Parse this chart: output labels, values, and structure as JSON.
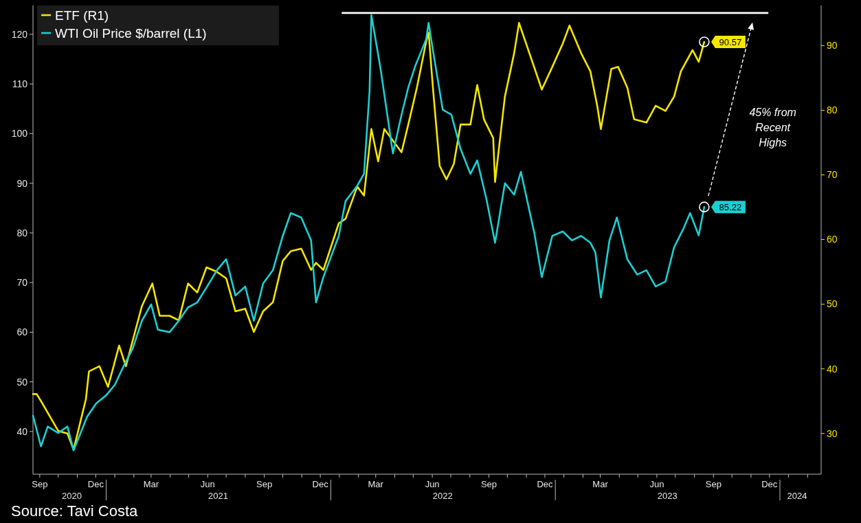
{
  "chart_data": {
    "type": "line",
    "legend": "top left",
    "xlim": [
      "2020-09-04",
      "2024-03-08"
    ],
    "xticks": [
      {
        "value": "2020-09-15",
        "label": "Sep"
      },
      {
        "value": "2020-10-15",
        "label": null
      },
      {
        "value": "2020-11-15",
        "label": null
      },
      {
        "value": "2020-12-15",
        "label": "Dec"
      },
      {
        "value": "2021-01-15",
        "label": null
      },
      {
        "value": "2021-02-15",
        "label": null
      },
      {
        "value": "2021-03-15",
        "label": "Mar"
      },
      {
        "value": "2021-04-15",
        "label": null
      },
      {
        "value": "2021-05-15",
        "label": null
      },
      {
        "value": "2021-06-15",
        "label": "Jun"
      },
      {
        "value": "2021-07-15",
        "label": null
      },
      {
        "value": "2021-08-15",
        "label": null
      },
      {
        "value": "2021-09-15",
        "label": "Sep"
      },
      {
        "value": "2021-10-15",
        "label": null
      },
      {
        "value": "2021-11-15",
        "label": null
      },
      {
        "value": "2021-12-15",
        "label": "Dec"
      },
      {
        "value": "2022-01-15",
        "label": null
      },
      {
        "value": "2022-02-15",
        "label": null
      },
      {
        "value": "2022-03-15",
        "label": "Mar"
      },
      {
        "value": "2022-04-15",
        "label": null
      },
      {
        "value": "2022-05-15",
        "label": null
      },
      {
        "value": "2022-06-15",
        "label": "Jun"
      },
      {
        "value": "2022-07-15",
        "label": null
      },
      {
        "value": "2022-08-15",
        "label": null
      },
      {
        "value": "2022-09-15",
        "label": "Sep"
      },
      {
        "value": "2022-10-15",
        "label": null
      },
      {
        "value": "2022-11-15",
        "label": null
      },
      {
        "value": "2022-12-15",
        "label": "Dec"
      },
      {
        "value": "2023-01-15",
        "label": null
      },
      {
        "value": "2023-02-15",
        "label": null
      },
      {
        "value": "2023-03-15",
        "label": "Mar"
      },
      {
        "value": "2023-04-15",
        "label": null
      },
      {
        "value": "2023-05-15",
        "label": null
      },
      {
        "value": "2023-06-15",
        "label": "Jun"
      },
      {
        "value": "2023-07-15",
        "label": null
      },
      {
        "value": "2023-08-15",
        "label": null
      },
      {
        "value": "2023-09-15",
        "label": "Sep"
      },
      {
        "value": "2023-10-15",
        "label": null
      },
      {
        "value": "2023-11-15",
        "label": null
      },
      {
        "value": "2023-12-15",
        "label": "Dec"
      },
      {
        "value": "2024-01-15",
        "label": null
      },
      {
        "value": "2024-02-15",
        "label": null
      }
    ],
    "x2lim": [
      "2020-09-04",
      "2024-03-08"
    ],
    "x2ticks": [
      {
        "value": "2020-11-06",
        "label": "2020"
      },
      {
        "value": "2021-07-02",
        "label": "2021"
      },
      {
        "value": "2022-07-02",
        "label": "2022"
      },
      {
        "value": "2023-07-02",
        "label": "2023"
      },
      {
        "value": "2024-01-29",
        "label": "2024"
      }
    ],
    "ylim": [
      31.4,
      125.8
    ],
    "yticks": [
      40,
      50,
      60,
      70,
      80,
      90,
      100,
      110,
      120
    ],
    "y2lim": [
      23.7,
      96.2
    ],
    "y2ticks": [
      30,
      40,
      50,
      60,
      70,
      80,
      90
    ],
    "series": [
      {
        "name": "ETF (R1)",
        "color": "#f5e600",
        "axis": "y2",
        "x": [
          "2020-09-04",
          "2020-09-10",
          "2020-09-19",
          "2020-09-28",
          "2020-10-15",
          "2020-10-30",
          "2020-11-09",
          "2020-11-29",
          "2020-12-04",
          "2020-12-21",
          "2021-01-04",
          "2021-01-22",
          "2021-02-02",
          "2021-02-28",
          "2021-03-17",
          "2021-03-29",
          "2021-04-14",
          "2021-04-29",
          "2021-05-14",
          "2021-05-29",
          "2021-06-13",
          "2021-06-30",
          "2021-07-15",
          "2021-07-30",
          "2021-08-15",
          "2021-08-29",
          "2021-09-13",
          "2021-09-29",
          "2021-10-15",
          "2021-10-28",
          "2021-11-14",
          "2021-11-30",
          "2021-12-08",
          "2021-12-20",
          "2022-01-14",
          "2022-01-25",
          "2022-02-13",
          "2022-02-24",
          "2022-03-08",
          "2022-03-19",
          "2022-03-29",
          "2022-04-26",
          "2022-05-07",
          "2022-05-21",
          "2022-06-05",
          "2022-06-09",
          "2022-06-16",
          "2022-06-27",
          "2022-07-08",
          "2022-07-20",
          "2022-07-31",
          "2022-08-16",
          "2022-08-27",
          "2022-09-07",
          "2022-09-22",
          "2022-09-25",
          "2022-10-11",
          "2022-10-26",
          "2022-11-03",
          "2022-12-10",
          "2022-12-27",
          "2023-01-13",
          "2023-01-24",
          "2023-02-12",
          "2023-02-27",
          "2023-03-10",
          "2023-03-16",
          "2023-04-02",
          "2023-04-13",
          "2023-04-28",
          "2023-05-09",
          "2023-05-29",
          "2023-06-13",
          "2023-06-29",
          "2023-07-13",
          "2023-07-24",
          "2023-08-12",
          "2023-08-22",
          "2023-08-31"
        ],
        "values": [
          36.1,
          36.1,
          34.7,
          33.2,
          30.4,
          30,
          27.5,
          35.3,
          39.6,
          40.4,
          37.2,
          43.6,
          40.4,
          49.7,
          53.2,
          48.2,
          48.2,
          47.5,
          53.2,
          51.8,
          55.7,
          55,
          54,
          48.9,
          49.3,
          45.7,
          48.9,
          50.3,
          56.7,
          58.2,
          58.6,
          55.3,
          56.4,
          55.3,
          62.5,
          63.2,
          68.2,
          66.8,
          77.1,
          72.1,
          77.1,
          73.5,
          77.8,
          83.5,
          90.6,
          92,
          83.5,
          71.4,
          69.3,
          71.7,
          77.8,
          77.8,
          83.9,
          78.6,
          75.7,
          68.9,
          82.1,
          88.8,
          93.5,
          83.2,
          86.7,
          90.3,
          93.1,
          88.8,
          86,
          80.7,
          77.1,
          86.4,
          86.7,
          83.5,
          78.6,
          78.1,
          80.7,
          79.9,
          82.1,
          86,
          89.3,
          87.5,
          90.57
        ],
        "value_labels": [
          null,
          null,
          null,
          null,
          null,
          null,
          null,
          null,
          null,
          null,
          null,
          null,
          null,
          null,
          null,
          null,
          null,
          null,
          null,
          null,
          null,
          null,
          null,
          null,
          null,
          null,
          null,
          null,
          null,
          null,
          null,
          null,
          null,
          null,
          null,
          null,
          null,
          null,
          null,
          null,
          null,
          null,
          null,
          null,
          null,
          null,
          null,
          null,
          null,
          null,
          null,
          null,
          null,
          null,
          null,
          null,
          null,
          null,
          null,
          null,
          null,
          null,
          null,
          null,
          null,
          null,
          null,
          null,
          null,
          null,
          null,
          null,
          null,
          null,
          null,
          null,
          null,
          null,
          "90.57"
        ]
      },
      {
        "name": "WTI Oil Price $/barrel (L1)",
        "color": "#1ccfd2",
        "x": [
          "2020-09-04",
          "2020-09-17",
          "2020-09-28",
          "2020-10-15",
          "2020-10-30",
          "2020-11-09",
          "2020-12-01",
          "2020-12-16",
          "2021-01-01",
          "2021-01-15",
          "2021-01-29",
          "2021-02-13",
          "2021-02-28",
          "2021-03-15",
          "2021-03-26",
          "2021-04-14",
          "2021-04-29",
          "2021-05-14",
          "2021-05-29",
          "2021-06-13",
          "2021-06-30",
          "2021-07-15",
          "2021-07-30",
          "2021-08-15",
          "2021-08-29",
          "2021-09-13",
          "2021-09-29",
          "2021-10-15",
          "2021-10-28",
          "2021-11-14",
          "2021-11-30",
          "2021-12-08",
          "2021-12-20",
          "2022-01-14",
          "2022-01-25",
          "2022-02-13",
          "2022-02-24",
          "2022-03-05",
          "2022-03-08",
          "2022-03-23",
          "2022-04-12",
          "2022-04-26",
          "2022-05-07",
          "2022-05-18",
          "2022-06-05",
          "2022-06-09",
          "2022-06-16",
          "2022-07-02",
          "2022-07-16",
          "2022-07-31",
          "2022-08-16",
          "2022-08-27",
          "2022-09-11",
          "2022-09-25",
          "2022-10-11",
          "2022-10-26",
          "2022-11-06",
          "2022-11-28",
          "2022-12-10",
          "2022-12-27",
          "2023-01-13",
          "2023-01-28",
          "2023-02-12",
          "2023-02-27",
          "2023-03-07",
          "2023-03-16",
          "2023-03-30",
          "2023-04-11",
          "2023-04-28",
          "2023-05-14",
          "2023-05-29",
          "2023-06-13",
          "2023-06-29",
          "2023-07-13",
          "2023-07-28",
          "2023-08-08",
          "2023-08-22",
          "2023-08-31"
        ],
        "values": [
          43.2,
          37,
          41,
          39.7,
          41,
          36.2,
          43,
          45.7,
          47.3,
          49.4,
          53.1,
          56.7,
          62.3,
          65.6,
          60.5,
          60,
          62.3,
          65,
          66,
          69,
          72.5,
          74.7,
          67.4,
          69.2,
          62.3,
          69.8,
          72.5,
          79.4,
          84,
          83.1,
          78.5,
          66,
          71.1,
          79.4,
          86.4,
          89.5,
          91.9,
          108.5,
          123.9,
          113,
          96,
          103.8,
          109.3,
          113.5,
          119,
          122.3,
          116.8,
          104.8,
          103.8,
          96.9,
          91.9,
          94.6,
          86.8,
          78,
          90,
          87.7,
          92.3,
          79.9,
          71.1,
          79.4,
          80.3,
          78.5,
          79.4,
          78,
          76.1,
          67,
          78.5,
          83.1,
          74.7,
          71.6,
          72.5,
          69.2,
          70.2,
          77.1,
          80.8,
          84,
          79.5,
          85.22
        ],
        "value_labels": [
          null,
          null,
          null,
          null,
          null,
          null,
          null,
          null,
          null,
          null,
          null,
          null,
          null,
          null,
          null,
          null,
          null,
          null,
          null,
          null,
          null,
          null,
          null,
          null,
          null,
          null,
          null,
          null,
          null,
          null,
          null,
          null,
          null,
          null,
          null,
          null,
          null,
          null,
          null,
          null,
          null,
          null,
          null,
          null,
          null,
          null,
          null,
          null,
          null,
          null,
          null,
          null,
          null,
          null,
          null,
          null,
          null,
          null,
          null,
          null,
          null,
          null,
          null,
          null,
          null,
          null,
          null,
          null,
          null,
          null,
          null,
          null,
          null,
          null,
          null,
          null,
          null,
          "85.22"
        ]
      },
      {
        "type": "line",
        "color": "#ffffff",
        "x": [
          "2022-01-20",
          "2023-12-12"
        ],
        "values": [
          124.3,
          124.3
        ]
      }
    ],
    "annotations": [
      "45% from Recent Highs",
      "Source: Tavi Costa"
    ]
  }
}
